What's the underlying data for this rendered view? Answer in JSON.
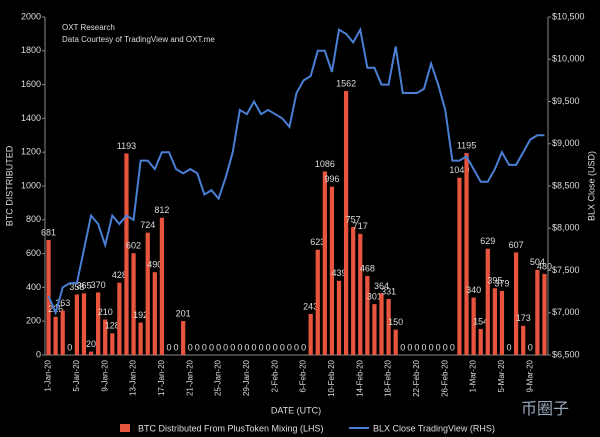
{
  "chart_data": {
    "type": "bar-line",
    "annotations": [
      "OXT Research",
      "Data Courtesy of TradingView and OXT.me"
    ],
    "watermark": "币圈子",
    "x_label": "DATE (UTC)",
    "y_label": "BTC DISTRIBUTED",
    "y2_label": "BLX Close (USD)",
    "categories": [
      "1-Jan-20",
      null,
      null,
      null,
      "5-Jan-20",
      null,
      null,
      null,
      "9-Jan-20",
      null,
      null,
      null,
      "13-Jan-20",
      null,
      null,
      null,
      "17-Jan-20",
      null,
      null,
      null,
      "21-Jan-20",
      null,
      null,
      null,
      "25-Jan-20",
      null,
      null,
      null,
      "29-Jan-20",
      null,
      null,
      null,
      "2-Feb-20",
      null,
      null,
      null,
      "6-Feb-20",
      null,
      null,
      null,
      "10-Feb-20",
      null,
      null,
      null,
      "14-Feb-20",
      null,
      null,
      null,
      "18-Feb-20",
      null,
      null,
      null,
      "22-Feb-20",
      null,
      null,
      null,
      "26-Feb-20",
      null,
      null,
      null,
      "1-Mar-20",
      null,
      null,
      null,
      "5-Mar-20",
      null,
      null,
      null,
      "9-Mar-20",
      null,
      null
    ],
    "series": [
      {
        "name": "BTC Distributed From PlusToken Mixing (LHS)",
        "color": "#e8553e",
        "type": "bar",
        "values": [
          681,
          226,
          263,
          0,
          358,
          365,
          20,
          370,
          210,
          128,
          428,
          1193,
          602,
          192,
          724,
          490,
          812,
          0,
          0,
          201,
          0,
          0,
          0,
          0,
          0,
          0,
          0,
          0,
          0,
          0,
          0,
          0,
          0,
          0,
          0,
          0,
          0,
          243,
          623,
          1086,
          996,
          439,
          1562,
          757,
          717,
          468,
          301,
          364,
          331,
          150,
          0,
          0,
          0,
          0,
          0,
          0,
          0,
          0,
          1049,
          1195,
          340,
          154,
          629,
          395,
          379,
          0,
          607,
          173,
          0,
          504,
          480
        ]
      },
      {
        "name": "BLX Close TradingView (RHS)",
        "color": "#4a7fd4",
        "type": "line",
        "axis": "y2",
        "values": [
          7200,
          7000,
          7300,
          7350,
          7350,
          7750,
          8150,
          8050,
          7800,
          8150,
          8050,
          8150,
          8100,
          8800,
          8800,
          8700,
          8900,
          8900,
          8700,
          8650,
          8700,
          8650,
          8400,
          8450,
          8350,
          8600,
          8900,
          9400,
          9350,
          9500,
          9350,
          9400,
          9350,
          9300,
          9200,
          9600,
          9750,
          9800,
          10100,
          10100,
          9850,
          10350,
          10300,
          10200,
          10350,
          9900,
          9900,
          9700,
          9700,
          10150,
          9600,
          9600,
          9600,
          9650,
          9950,
          9700,
          9400,
          8800,
          8800,
          8850,
          8700,
          8550,
          8550,
          8700,
          8900,
          8750,
          8750,
          8900,
          9050,
          9100,
          9100
        ]
      }
    ],
    "ylim": [
      0,
      2000
    ],
    "yticks": [
      0,
      200,
      400,
      600,
      800,
      1000,
      1200,
      1400,
      1600,
      1800,
      2000
    ],
    "y2lim": [
      6500,
      10500
    ],
    "y2ticks": [
      {
        "value": 6500,
        "label": "$6,500"
      },
      {
        "value": 7000,
        "label": "$7,000"
      },
      {
        "value": 7500,
        "label": "$7,500"
      },
      {
        "value": 8000,
        "label": "$8,000"
      },
      {
        "value": 8500,
        "label": "$8,500"
      },
      {
        "value": 9000,
        "label": "$9,000"
      },
      {
        "value": 9500,
        "label": "$9,500"
      },
      {
        "value": 10000,
        "label": "$10,000"
      },
      {
        "value": 10500,
        "label": "$10,500"
      }
    ],
    "legend": "bottom"
  }
}
